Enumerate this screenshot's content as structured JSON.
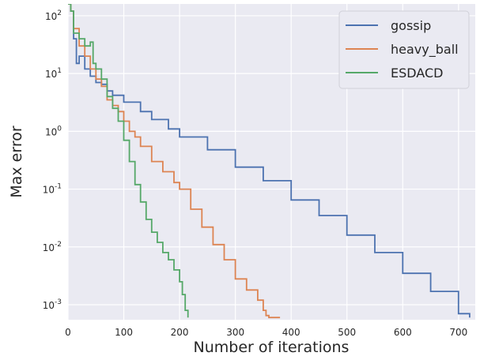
{
  "chart_data": {
    "type": "line",
    "title": "",
    "xlabel": "Number of iterations",
    "ylabel": "Max error",
    "y_scale": "log",
    "xlim": [
      0,
      730
    ],
    "ylim": [
      0.00055,
      160
    ],
    "x_ticks": [
      {
        "value": 0,
        "label": "0"
      },
      {
        "value": 100,
        "label": "100"
      },
      {
        "value": 200,
        "label": "200"
      },
      {
        "value": 300,
        "label": "300"
      },
      {
        "value": 400,
        "label": "400"
      },
      {
        "value": 500,
        "label": "500"
      },
      {
        "value": 600,
        "label": "600"
      },
      {
        "value": 700,
        "label": "700"
      }
    ],
    "y_ticks": [
      {
        "value": 100,
        "base": "10",
        "exp": "2"
      },
      {
        "value": 10,
        "base": "10",
        "exp": "1"
      },
      {
        "value": 1,
        "base": "10",
        "exp": "0"
      },
      {
        "value": 0.1,
        "base": "10",
        "exp": "-1"
      },
      {
        "value": 0.01,
        "base": "10",
        "exp": "-2"
      },
      {
        "value": 0.001,
        "base": "10",
        "exp": "-3"
      }
    ],
    "grid": true,
    "background": "#eaeaf2",
    "legend_position": "top-right",
    "series": [
      {
        "name": "gossip",
        "color": "#4c72b0",
        "x": [
          0,
          5,
          10,
          15,
          20,
          30,
          40,
          50,
          60,
          70,
          80,
          100,
          130,
          150,
          180,
          200,
          250,
          300,
          350,
          400,
          450,
          500,
          550,
          600,
          650,
          700,
          720
        ],
        "y": [
          160,
          120,
          40,
          15,
          20,
          12,
          9,
          7,
          6.5,
          5,
          4.2,
          3.2,
          2.2,
          1.6,
          1.1,
          0.8,
          0.48,
          0.24,
          0.14,
          0.065,
          0.035,
          0.016,
          0.008,
          0.0035,
          0.0017,
          0.0007,
          0.0006
        ]
      },
      {
        "name": "heavy_ball",
        "color": "#dd8452",
        "x": [
          0,
          5,
          10,
          20,
          30,
          40,
          50,
          60,
          70,
          80,
          90,
          100,
          110,
          120,
          130,
          150,
          170,
          190,
          200,
          220,
          240,
          260,
          280,
          300,
          320,
          340,
          350,
          355,
          360,
          370,
          380
        ],
        "y": [
          160,
          120,
          60,
          30,
          20,
          12,
          8,
          6,
          3.5,
          2.8,
          2.2,
          1.5,
          1.0,
          0.8,
          0.55,
          0.3,
          0.2,
          0.13,
          0.1,
          0.045,
          0.022,
          0.011,
          0.006,
          0.0028,
          0.0018,
          0.0012,
          0.0008,
          0.00065,
          0.0006,
          0.0006,
          0.0006
        ]
      },
      {
        "name": "ESDACD",
        "color": "#55a868",
        "x": [
          0,
          5,
          10,
          20,
          30,
          40,
          45,
          50,
          60,
          70,
          80,
          90,
          100,
          110,
          120,
          130,
          140,
          150,
          160,
          170,
          180,
          190,
          200,
          205,
          210,
          215
        ],
        "y": [
          160,
          120,
          50,
          40,
          30,
          35,
          15,
          12,
          8,
          4,
          2.5,
          1.5,
          0.7,
          0.3,
          0.12,
          0.06,
          0.03,
          0.018,
          0.012,
          0.008,
          0.006,
          0.004,
          0.0025,
          0.0015,
          0.0008,
          0.0006
        ]
      }
    ]
  }
}
